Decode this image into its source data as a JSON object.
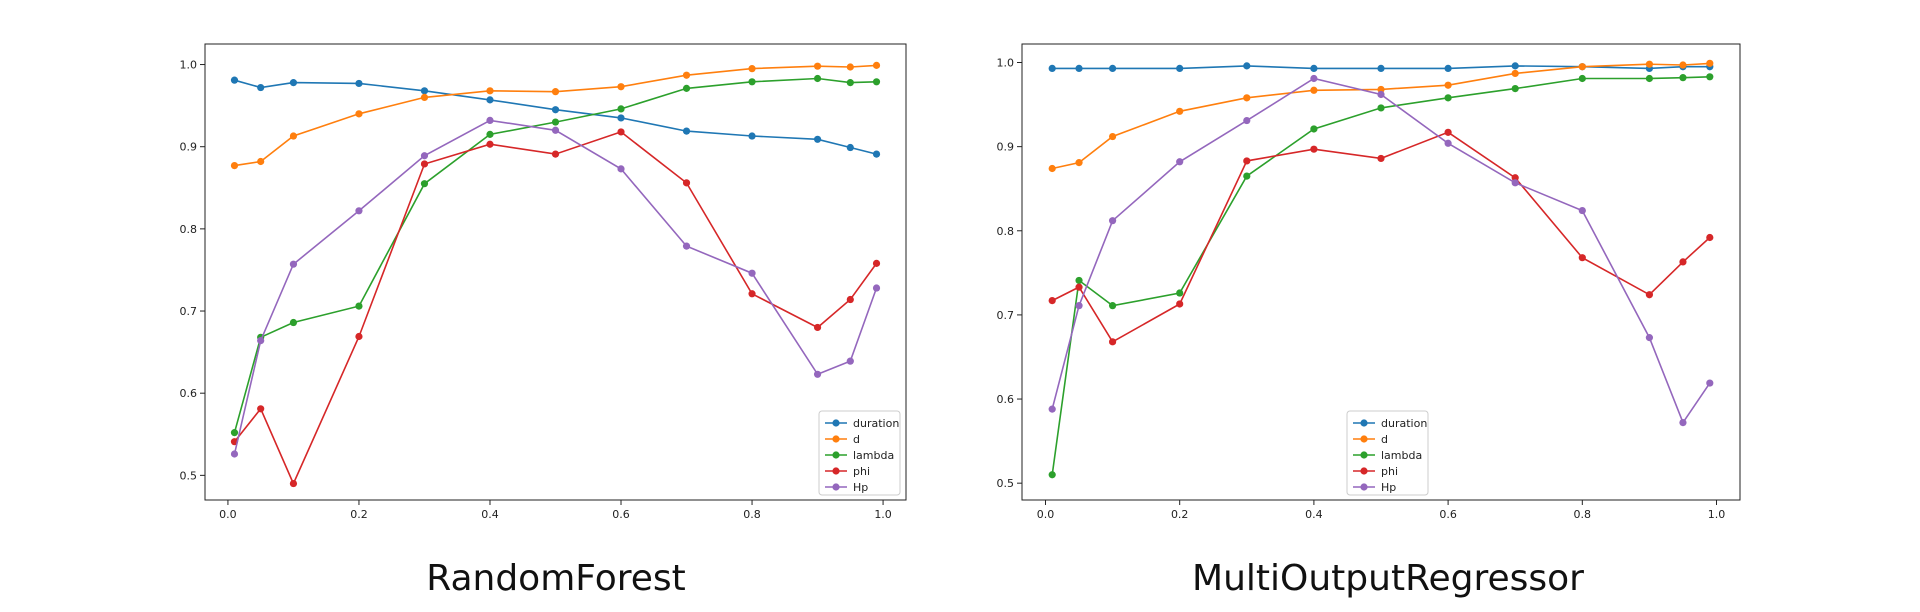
{
  "chart_data": [
    {
      "type": "line",
      "caption": "RandomForest",
      "x": [
        0.01,
        0.05,
        0.1,
        0.2,
        0.3,
        0.4,
        0.5,
        0.6,
        0.7,
        0.8,
        0.9,
        0.95,
        0.99
      ],
      "xlim": [
        -0.035,
        1.035
      ],
      "ylim": [
        0.47,
        1.025
      ],
      "xticks": [
        "0.0",
        "0.2",
        "0.4",
        "0.6",
        "0.8",
        "1.0"
      ],
      "yticks": [
        "0.5",
        "0.6",
        "0.7",
        "0.8",
        "0.9",
        "1.0"
      ],
      "legend_position": "lower right",
      "grid": false,
      "series": [
        {
          "name": "duration",
          "color": "#1f77b4",
          "values": [
            0.981,
            0.972,
            0.978,
            0.977,
            0.968,
            0.957,
            0.945,
            0.935,
            0.919,
            0.913,
            0.909,
            0.899,
            0.891
          ]
        },
        {
          "name": "d",
          "color": "#ff7f0e",
          "values": [
            0.877,
            0.882,
            0.913,
            0.94,
            0.96,
            0.968,
            0.967,
            0.973,
            0.987,
            0.995,
            0.998,
            0.997,
            0.999
          ]
        },
        {
          "name": "lambda",
          "color": "#2ca02c",
          "values": [
            0.552,
            0.668,
            0.686,
            0.706,
            0.855,
            0.915,
            0.93,
            0.946,
            0.971,
            0.979,
            0.983,
            0.978,
            0.979
          ]
        },
        {
          "name": "phi",
          "color": "#d62728",
          "values": [
            0.541,
            0.581,
            0.49,
            0.669,
            0.879,
            0.903,
            0.891,
            0.918,
            0.856,
            0.721,
            0.68,
            0.714,
            0.758
          ]
        },
        {
          "name": "Hp",
          "color": "#9467bd",
          "values": [
            0.526,
            0.664,
            0.757,
            0.822,
            0.889,
            0.932,
            0.92,
            0.873,
            0.779,
            0.746,
            0.623,
            0.639,
            0.728
          ]
        }
      ]
    },
    {
      "type": "line",
      "caption": "MultiOutputRegressor",
      "x": [
        0.01,
        0.05,
        0.1,
        0.2,
        0.3,
        0.4,
        0.5,
        0.6,
        0.7,
        0.8,
        0.9,
        0.95,
        0.99
      ],
      "xlim": [
        -0.035,
        1.035
      ],
      "ylim": [
        0.48,
        1.022
      ],
      "xticks": [
        "0.0",
        "0.2",
        "0.4",
        "0.6",
        "0.8",
        "1.0"
      ],
      "yticks": [
        "0.5",
        "0.6",
        "0.7",
        "0.8",
        "0.9",
        "1.0"
      ],
      "legend_position": "lower center",
      "grid": false,
      "series": [
        {
          "name": "duration",
          "color": "#1f77b4",
          "values": [
            0.993,
            0.993,
            0.993,
            0.993,
            0.996,
            0.993,
            0.993,
            0.993,
            0.996,
            0.995,
            0.993,
            0.995,
            0.995
          ]
        },
        {
          "name": "d",
          "color": "#ff7f0e",
          "values": [
            0.874,
            0.881,
            0.912,
            0.942,
            0.958,
            0.967,
            0.968,
            0.973,
            0.987,
            0.995,
            0.998,
            0.997,
            0.999
          ]
        },
        {
          "name": "lambda",
          "color": "#2ca02c",
          "values": [
            0.51,
            0.741,
            0.711,
            0.726,
            0.865,
            0.921,
            0.946,
            0.958,
            0.969,
            0.981,
            0.981,
            0.982,
            0.983
          ]
        },
        {
          "name": "phi",
          "color": "#d62728",
          "values": [
            0.717,
            0.733,
            0.668,
            0.713,
            0.883,
            0.897,
            0.886,
            0.917,
            0.863,
            0.768,
            0.724,
            0.763,
            0.792
          ]
        },
        {
          "name": "Hp",
          "color": "#9467bd",
          "values": [
            0.588,
            0.711,
            0.812,
            0.882,
            0.931,
            0.981,
            0.962,
            0.904,
            0.857,
            0.824,
            0.673,
            0.572,
            0.619
          ]
        }
      ]
    }
  ]
}
